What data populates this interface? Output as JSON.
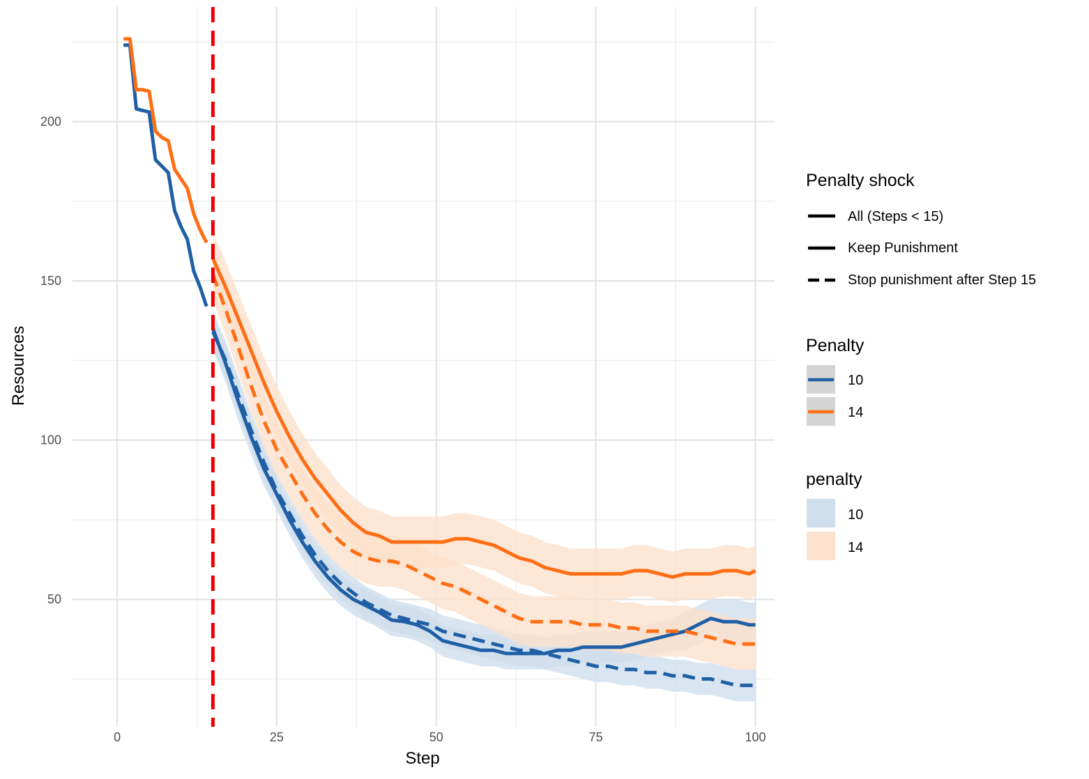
{
  "chart_data": {
    "type": "line",
    "title": "",
    "xlabel": "Step",
    "ylabel": "Resources",
    "xlim": [
      -7,
      103
    ],
    "ylim": [
      10,
      236
    ],
    "x_ticks": [
      0,
      25,
      50,
      75,
      100
    ],
    "y_ticks": [
      50,
      100,
      150,
      200
    ],
    "grid": true,
    "legend_position": "right",
    "vline": {
      "x": 15,
      "color": "#ee0000",
      "style": "dashed"
    },
    "legends": [
      {
        "title": "Penalty shock",
        "entries": [
          {
            "label": "All (Steps < 15)",
            "linetype": "solid"
          },
          {
            "label": "Keep Punishment",
            "linetype": "solid"
          },
          {
            "label": "Stop punishment after Step 15",
            "linetype": "dashed"
          }
        ]
      },
      {
        "title": "Penalty",
        "entries": [
          {
            "label": "10",
            "color": "#1f5fa5"
          },
          {
            "label": "14",
            "color": "#ff6e14"
          }
        ]
      },
      {
        "title": "penalty",
        "entries": [
          {
            "label": "10",
            "fill": "#cfdeed"
          },
          {
            "label": "14",
            "fill": "#fde1cc"
          }
        ]
      }
    ],
    "series": [
      {
        "penalty": "10",
        "shock": "All (Steps < 15)",
        "linetype": "solid",
        "color": "#1f5fa5",
        "x": [
          1,
          2,
          3,
          4,
          5,
          6,
          7,
          8,
          9,
          10,
          11,
          12,
          13,
          14
        ],
        "y": [
          224,
          224,
          204,
          203.5,
          203,
          188,
          186,
          184,
          172,
          167,
          163,
          153,
          148,
          142
        ]
      },
      {
        "penalty": "14",
        "shock": "All (Steps < 15)",
        "linetype": "solid",
        "color": "#ff6e14",
        "x": [
          1,
          2,
          3,
          4,
          5,
          6,
          7,
          8,
          9,
          10,
          11,
          12,
          13,
          14
        ],
        "y": [
          226,
          226,
          210,
          210,
          209.5,
          197,
          195,
          194,
          185,
          182,
          179,
          171,
          166,
          162
        ]
      },
      {
        "penalty": "10",
        "shock": "Keep Punishment",
        "linetype": "solid",
        "color": "#1f5fa5",
        "x": [
          15,
          17,
          19,
          21,
          23,
          25,
          27,
          29,
          31,
          33,
          35,
          37,
          39,
          41,
          43,
          45,
          47,
          49,
          51,
          53,
          55,
          57,
          59,
          61,
          63,
          65,
          67,
          69,
          71,
          73,
          75,
          77,
          79,
          81,
          83,
          85,
          87,
          89,
          91,
          93,
          95,
          97,
          99,
          100
        ],
        "y": [
          135,
          124,
          112,
          101,
          91,
          83,
          75,
          68,
          62,
          57,
          53,
          50,
          48,
          46,
          43.5,
          43,
          42,
          40,
          37,
          36,
          35,
          34,
          34,
          33,
          33,
          33,
          33,
          34,
          34,
          35,
          35,
          35,
          35,
          36,
          37,
          38,
          39,
          40,
          42,
          44,
          43,
          43,
          42,
          42
        ],
        "ci": [
          6,
          6,
          6,
          5.5,
          5.5,
          5,
          5,
          5,
          5,
          5,
          5,
          5,
          5,
          5,
          5,
          5,
          5,
          5,
          5,
          5,
          5,
          5,
          5,
          5,
          5,
          5,
          5,
          5,
          5,
          5,
          5,
          5,
          5,
          5,
          5,
          5,
          5,
          6,
          6,
          6,
          7,
          7,
          7,
          7
        ]
      },
      {
        "penalty": "10",
        "shock": "Stop punishment after Step 15",
        "linetype": "dashed",
        "color": "#1f5fa5",
        "x": [
          15,
          17,
          19,
          21,
          23,
          25,
          27,
          29,
          31,
          33,
          35,
          37,
          39,
          41,
          43,
          45,
          47,
          49,
          51,
          53,
          55,
          57,
          59,
          61,
          63,
          65,
          67,
          69,
          71,
          73,
          75,
          77,
          79,
          81,
          83,
          85,
          87,
          89,
          91,
          93,
          95,
          97,
          99,
          100
        ],
        "y": [
          134,
          125,
          114,
          103,
          93,
          84,
          77,
          70,
          64,
          59,
          55,
          52,
          49,
          47,
          45,
          44,
          43,
          42,
          40,
          39,
          38,
          37,
          36,
          35,
          34,
          34,
          33,
          32,
          31,
          30,
          29,
          29,
          28,
          28,
          27,
          27,
          26,
          26,
          25,
          25,
          24,
          23,
          23,
          23
        ],
        "ci": [
          6,
          6,
          6,
          5.5,
          5.5,
          5,
          5,
          5,
          5,
          5,
          5,
          5,
          5,
          5,
          5,
          5,
          5,
          5,
          5,
          5,
          5,
          5,
          5,
          5,
          5,
          5,
          5,
          5,
          5,
          5,
          5,
          5,
          5,
          5,
          5,
          5,
          5,
          5,
          5,
          5,
          5,
          5,
          5,
          5
        ]
      },
      {
        "penalty": "14",
        "shock": "Keep Punishment",
        "linetype": "solid",
        "color": "#ff6e14",
        "x": [
          15,
          17,
          19,
          21,
          23,
          25,
          27,
          29,
          31,
          33,
          35,
          37,
          39,
          41,
          43,
          45,
          47,
          49,
          51,
          53,
          55,
          57,
          59,
          61,
          63,
          65,
          67,
          69,
          71,
          73,
          75,
          77,
          79,
          81,
          83,
          85,
          87,
          89,
          91,
          93,
          95,
          97,
          99,
          100
        ],
        "y": [
          157,
          148,
          138,
          128,
          118,
          109,
          101,
          94,
          88,
          83,
          78,
          74,
          71,
          70,
          68,
          68,
          68,
          68,
          68,
          69,
          69,
          68,
          67,
          65,
          63,
          62,
          60,
          59,
          58,
          58,
          58,
          58,
          58,
          59,
          59,
          58,
          57,
          58,
          58,
          58,
          59,
          59,
          58,
          59
        ],
        "ci": [
          8,
          8,
          8,
          8,
          8,
          8,
          8,
          8,
          8,
          8,
          8,
          8,
          8,
          8,
          8,
          8,
          8,
          8,
          8,
          8,
          8,
          8,
          8,
          8,
          8,
          8,
          8,
          8,
          8,
          8,
          8,
          8,
          8,
          8,
          8,
          8,
          8,
          8,
          8,
          8,
          8,
          8,
          8,
          8
        ]
      },
      {
        "penalty": "14",
        "shock": "Stop punishment after Step 15",
        "linetype": "dashed",
        "color": "#ff6e14",
        "x": [
          15,
          17,
          19,
          21,
          23,
          25,
          27,
          29,
          31,
          33,
          35,
          37,
          39,
          41,
          43,
          45,
          47,
          49,
          51,
          53,
          55,
          57,
          59,
          61,
          63,
          65,
          67,
          69,
          71,
          73,
          75,
          77,
          79,
          81,
          83,
          85,
          87,
          89,
          91,
          93,
          95,
          97,
          99,
          100
        ],
        "y": [
          152,
          141,
          129,
          117,
          106,
          97,
          90,
          83,
          77,
          72,
          68,
          65,
          63,
          62,
          62,
          61,
          59,
          57,
          55,
          54,
          52,
          50,
          48,
          46,
          44,
          43,
          43,
          43,
          43,
          42,
          42,
          42,
          41,
          41,
          40,
          40,
          40,
          40,
          39,
          38,
          37,
          36,
          36,
          36
        ],
        "ci": [
          8,
          8,
          8,
          8,
          8,
          8,
          8,
          8,
          8,
          8,
          8,
          8,
          8,
          8,
          8,
          8,
          8,
          8,
          8,
          8,
          8,
          8,
          8,
          8,
          8,
          8,
          8,
          8,
          8,
          8,
          8,
          8,
          8,
          8,
          8,
          8,
          8,
          8,
          8,
          8,
          8,
          8,
          8,
          8
        ]
      }
    ]
  }
}
